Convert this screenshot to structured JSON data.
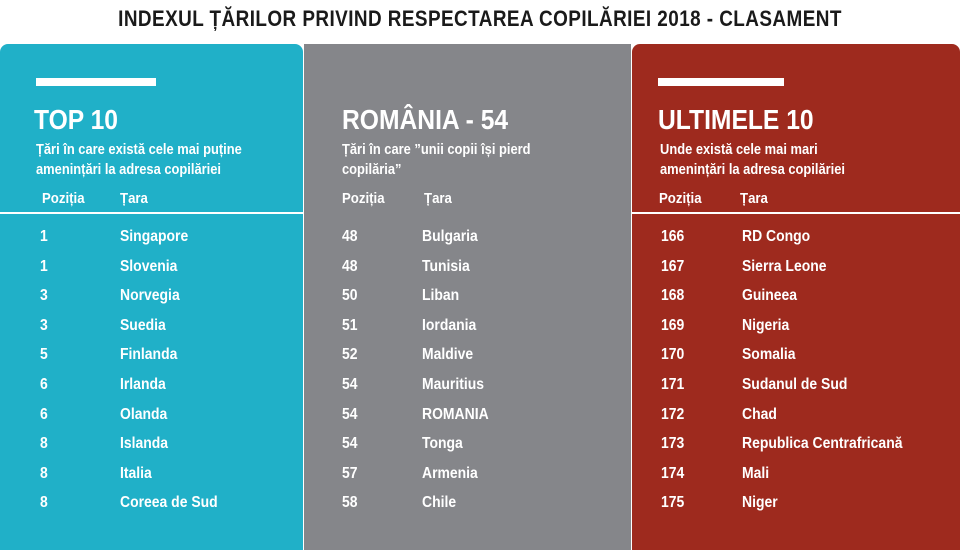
{
  "title": "INDEXUL ȚĂRILOR PRIVIND RESPECTAREA COPILĂRIEI 2018 - CLASAMENT",
  "panels": [
    {
      "heading": "TOP 10",
      "subtitle_lines": [
        "Țări în care există cele mai puține",
        "amenințări la adresa copilăriei"
      ],
      "col_position": "Poziția",
      "col_country": "Țara",
      "rows": [
        {
          "pos": "1",
          "country": "Singapore"
        },
        {
          "pos": "1",
          "country": "Slovenia"
        },
        {
          "pos": "3",
          "country": "Norvegia"
        },
        {
          "pos": "3",
          "country": "Suedia"
        },
        {
          "pos": "5",
          "country": "Finlanda"
        },
        {
          "pos": "6",
          "country": "Irlanda"
        },
        {
          "pos": "6",
          "country": "Olanda"
        },
        {
          "pos": "8",
          "country": "Islanda"
        },
        {
          "pos": "8",
          "country": "Italia"
        },
        {
          "pos": "8",
          "country": "Coreea de Sud"
        }
      ]
    },
    {
      "heading": "ROMÂNIA - 54",
      "subtitle_lines": [
        "Țări în care ”unii copii își pierd",
        "copilăria”"
      ],
      "col_position": "Poziția",
      "col_country": "Țara",
      "rows": [
        {
          "pos": "48",
          "country": "Bulgaria"
        },
        {
          "pos": "48",
          "country": "Tunisia"
        },
        {
          "pos": "50",
          "country": "Liban"
        },
        {
          "pos": "51",
          "country": "Iordania"
        },
        {
          "pos": "52",
          "country": "Maldive"
        },
        {
          "pos": "54",
          "country": "Mauritius"
        },
        {
          "pos": "54",
          "country": "ROMANIA"
        },
        {
          "pos": "54",
          "country": "Tonga"
        },
        {
          "pos": "57",
          "country": "Armenia"
        },
        {
          "pos": "58",
          "country": "Chile"
        }
      ]
    },
    {
      "heading": "ULTIMELE 10",
      "subtitle_lines": [
        "Unde există cele mai mari",
        "amenințări la adresa copilăriei"
      ],
      "col_position": "Poziția",
      "col_country": "Țara",
      "rows": [
        {
          "pos": "166",
          "country": "RD Congo"
        },
        {
          "pos": "167",
          "country": "Sierra Leone"
        },
        {
          "pos": "168",
          "country": "Guineea"
        },
        {
          "pos": "169",
          "country": "Nigeria"
        },
        {
          "pos": "170",
          "country": "Somalia"
        },
        {
          "pos": "171",
          "country": "Sudanul de Sud"
        },
        {
          "pos": "172",
          "country": "Chad"
        },
        {
          "pos": "173",
          "country": "Republica Centrafricană"
        },
        {
          "pos": "174",
          "country": "Mali"
        },
        {
          "pos": "175",
          "country": "Niger"
        }
      ]
    }
  ],
  "colors": {
    "top10": "#20b0c8",
    "romania": "#85868a",
    "bottom10": "#9e2a1e",
    "text": "#ffffff"
  }
}
